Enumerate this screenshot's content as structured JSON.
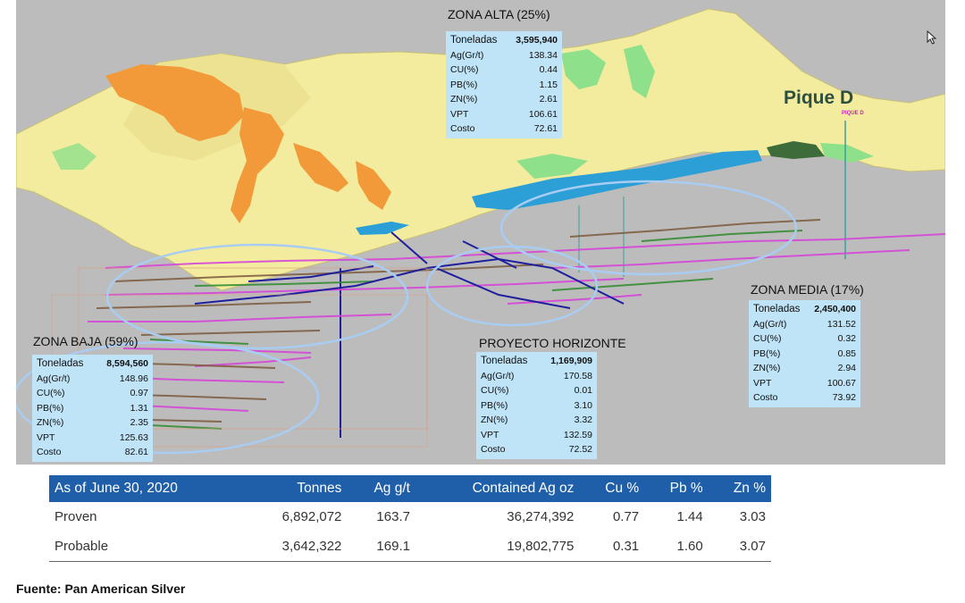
{
  "zones": {
    "alta": {
      "title": "ZONA ALTA  (25%)",
      "rows": [
        {
          "label": "Toneladas",
          "value": "3,595,940"
        },
        {
          "label": "Ag(Gr/t)",
          "value": "138.34"
        },
        {
          "label": "CU(%)",
          "value": "0.44"
        },
        {
          "label": "PB(%)",
          "value": "1.15"
        },
        {
          "label": "ZN(%)",
          "value": "2.61"
        },
        {
          "label": "VPT",
          "value": "106.61"
        },
        {
          "label": "Costo",
          "value": "72.61"
        }
      ]
    },
    "media": {
      "title": "ZONA MEDIA  (17%)",
      "rows": [
        {
          "label": "Toneladas",
          "value": "2,450,400"
        },
        {
          "label": "Ag(Gr/t)",
          "value": "131.52"
        },
        {
          "label": "CU(%)",
          "value": "0.32"
        },
        {
          "label": "PB(%)",
          "value": "0.85"
        },
        {
          "label": "ZN(%)",
          "value": "2.94"
        },
        {
          "label": "VPT",
          "value": "100.67"
        },
        {
          "label": "Costo",
          "value": "73.92"
        }
      ]
    },
    "horizonte": {
      "title": "PROYECTO HORIZONTE",
      "rows": [
        {
          "label": "Toneladas",
          "value": "1,169,909"
        },
        {
          "label": "Ag(Gr/t)",
          "value": "170.58"
        },
        {
          "label": "CU(%)",
          "value": "0.01"
        },
        {
          "label": "PB(%)",
          "value": "3.10"
        },
        {
          "label": "ZN(%)",
          "value": "3.32"
        },
        {
          "label": "VPT",
          "value": "132.59"
        },
        {
          "label": "Costo",
          "value": "72.52"
        }
      ]
    },
    "baja": {
      "title": "ZONA BAJA  (59%)",
      "rows": [
        {
          "label": "Toneladas",
          "value": "8,594,560"
        },
        {
          "label": "Ag(Gr/t)",
          "value": "148.96"
        },
        {
          "label": "CU(%)",
          "value": "0.97"
        },
        {
          "label": "PB(%)",
          "value": "1.31"
        },
        {
          "label": "ZN(%)",
          "value": "2.35"
        },
        {
          "label": "VPT",
          "value": "125.63"
        },
        {
          "label": "Costo",
          "value": "82.61"
        }
      ]
    }
  },
  "pique": {
    "label": "Pique  D",
    "tag": "PIQUE D"
  },
  "reserves_table": {
    "headers": [
      "As of June 30, 2020",
      "Tonnes",
      "Ag g/t",
      "Contained Ag oz",
      "Cu %",
      "Pb %",
      "Zn %"
    ],
    "rows": [
      [
        "Proven",
        "6,892,072",
        "163.7",
        "36,274,392",
        "0.77",
        "1.44",
        "3.03"
      ],
      [
        "Probable",
        "3,642,322",
        "169.1",
        "19,802,775",
        "0.31",
        "1.60",
        "3.07"
      ]
    ],
    "header_color": "#1f5ea8"
  },
  "source": "Fuente: Pan American Silver",
  "colors": {
    "terrain": "#f3ec9f",
    "orange_zone": "#f29a3a",
    "green_zone": "#8fe08a",
    "water": "#2b9fd6",
    "ellipse": "#a9cdf2",
    "veins": [
      "#d646d8",
      "#7b5a3c",
      "#2e8b2e",
      "#1f1f9e"
    ]
  },
  "icons": [
    "mouse-cursor-icon"
  ]
}
